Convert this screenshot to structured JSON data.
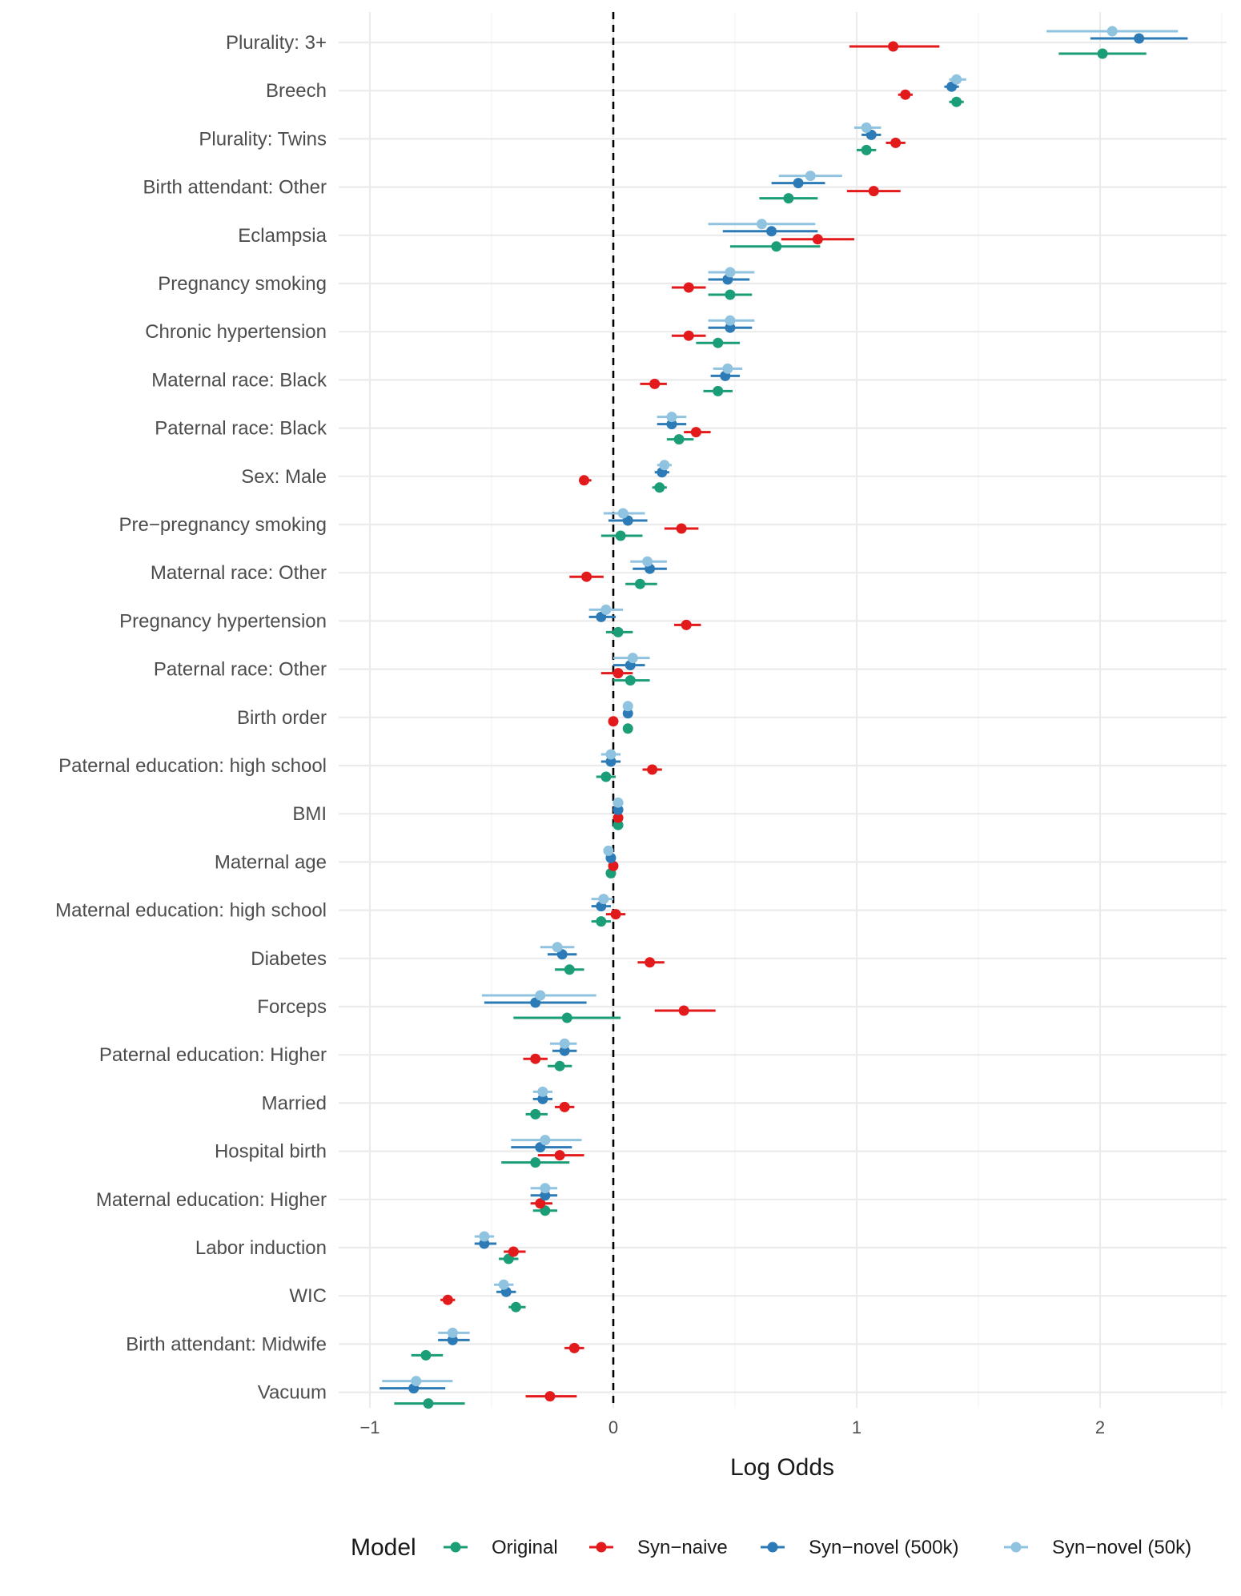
{
  "chart_data": {
    "type": "forest",
    "xlabel": "Log Odds",
    "ylabel": "",
    "xlim": [
      -1.05,
      2.5
    ],
    "x_ticks": [
      -1,
      0,
      1,
      2
    ],
    "x_tick_labels": [
      "−1",
      "0",
      "1",
      "2"
    ],
    "reference_line": 0,
    "legend_title": "Model",
    "series": [
      {
        "name": "Original",
        "color": "#1b9e77"
      },
      {
        "name": "Syn−naive",
        "color": "#e31a1c"
      },
      {
        "name": "Syn−novel (500k)",
        "color": "#2c7bb6"
      },
      {
        "name": "Syn−novel (50k)",
        "color": "#8fc3e0"
      }
    ],
    "categories": [
      "Plurality: 3+",
      "Breech",
      "Plurality: Twins",
      "Birth attendant: Other",
      "Eclampsia",
      "Pregnancy smoking",
      "Chronic hypertension",
      "Maternal race: Black",
      "Paternal race: Black",
      "Sex: Male",
      "Pre−pregnancy smoking",
      "Maternal race: Other",
      "Pregnancy hypertension",
      "Paternal race: Other",
      "Birth order",
      "Paternal education: high school",
      "BMI",
      "Maternal age",
      "Maternal education: high school",
      "Diabetes",
      "Forceps",
      "Paternal education: Higher",
      "Married",
      "Hospital birth",
      "Maternal education: Higher",
      "Labor induction",
      "WIC",
      "Birth attendant: Midwife",
      "Vacuum"
    ],
    "estimates": [
      [
        [
          2.01,
          1.83,
          2.19
        ],
        [
          1.15,
          0.97,
          1.34
        ],
        [
          2.16,
          1.96,
          2.36
        ],
        [
          2.05,
          1.78,
          2.32
        ]
      ],
      [
        [
          1.41,
          1.38,
          1.44
        ],
        [
          1.2,
          1.17,
          1.23
        ],
        [
          1.39,
          1.36,
          1.42
        ],
        [
          1.41,
          1.38,
          1.45
        ]
      ],
      [
        [
          1.04,
          1.0,
          1.08
        ],
        [
          1.16,
          1.12,
          1.2
        ],
        [
          1.06,
          1.02,
          1.1
        ],
        [
          1.04,
          0.99,
          1.1
        ]
      ],
      [
        [
          0.72,
          0.6,
          0.84
        ],
        [
          1.07,
          0.96,
          1.18
        ],
        [
          0.76,
          0.65,
          0.87
        ],
        [
          0.81,
          0.68,
          0.94
        ]
      ],
      [
        [
          0.67,
          0.48,
          0.85
        ],
        [
          0.84,
          0.69,
          0.99
        ],
        [
          0.65,
          0.45,
          0.84
        ],
        [
          0.61,
          0.39,
          0.83
        ]
      ],
      [
        [
          0.48,
          0.39,
          0.57
        ],
        [
          0.31,
          0.24,
          0.38
        ],
        [
          0.47,
          0.39,
          0.56
        ],
        [
          0.48,
          0.39,
          0.58
        ]
      ],
      [
        [
          0.43,
          0.34,
          0.52
        ],
        [
          0.31,
          0.24,
          0.38
        ],
        [
          0.48,
          0.39,
          0.57
        ],
        [
          0.48,
          0.39,
          0.58
        ]
      ],
      [
        [
          0.43,
          0.37,
          0.49
        ],
        [
          0.17,
          0.11,
          0.22
        ],
        [
          0.46,
          0.4,
          0.52
        ],
        [
          0.47,
          0.41,
          0.53
        ]
      ],
      [
        [
          0.27,
          0.22,
          0.33
        ],
        [
          0.34,
          0.29,
          0.4
        ],
        [
          0.24,
          0.18,
          0.3
        ],
        [
          0.24,
          0.18,
          0.3
        ]
      ],
      [
        [
          0.19,
          0.16,
          0.22
        ],
        [
          -0.12,
          -0.14,
          -0.09
        ],
        [
          0.2,
          0.17,
          0.23
        ],
        [
          0.21,
          0.18,
          0.24
        ]
      ],
      [
        [
          0.03,
          -0.05,
          0.12
        ],
        [
          0.28,
          0.21,
          0.35
        ],
        [
          0.06,
          -0.02,
          0.14
        ],
        [
          0.04,
          -0.04,
          0.13
        ]
      ],
      [
        [
          0.11,
          0.05,
          0.18
        ],
        [
          -0.11,
          -0.18,
          -0.04
        ],
        [
          0.15,
          0.08,
          0.22
        ],
        [
          0.14,
          0.07,
          0.22
        ]
      ],
      [
        [
          0.02,
          -0.03,
          0.08
        ],
        [
          0.3,
          0.25,
          0.36
        ],
        [
          -0.05,
          -0.1,
          0.01
        ],
        [
          -0.03,
          -0.1,
          0.04
        ]
      ],
      [
        [
          0.07,
          0.0,
          0.15
        ],
        [
          0.02,
          -0.05,
          0.08
        ],
        [
          0.07,
          0.0,
          0.13
        ],
        [
          0.08,
          0.0,
          0.15
        ]
      ],
      [
        [
          0.06,
          0.04,
          0.08
        ],
        [
          0.0,
          -0.01,
          0.01
        ],
        [
          0.06,
          0.04,
          0.08
        ],
        [
          0.06,
          0.04,
          0.08
        ]
      ],
      [
        [
          -0.03,
          -0.07,
          0.01
        ],
        [
          0.16,
          0.12,
          0.2
        ],
        [
          -0.01,
          -0.05,
          0.03
        ],
        [
          -0.01,
          -0.05,
          0.03
        ]
      ],
      [
        [
          0.02,
          0.0,
          0.03
        ],
        [
          0.02,
          0.0,
          0.03
        ],
        [
          0.02,
          0.0,
          0.03
        ],
        [
          0.02,
          0.0,
          0.03
        ]
      ],
      [
        [
          -0.01,
          -0.03,
          0.0
        ],
        [
          0.0,
          -0.01,
          0.01
        ],
        [
          -0.01,
          -0.03,
          0.0
        ],
        [
          -0.02,
          -0.03,
          0.0
        ]
      ],
      [
        [
          -0.05,
          -0.09,
          -0.01
        ],
        [
          0.01,
          -0.03,
          0.05
        ],
        [
          -0.05,
          -0.09,
          -0.01
        ],
        [
          -0.04,
          -0.09,
          0.0
        ]
      ],
      [
        [
          -0.18,
          -0.24,
          -0.12
        ],
        [
          0.15,
          0.1,
          0.21
        ],
        [
          -0.21,
          -0.27,
          -0.15
        ],
        [
          -0.23,
          -0.3,
          -0.16
        ]
      ],
      [
        [
          -0.19,
          -0.41,
          0.03
        ],
        [
          0.29,
          0.17,
          0.42
        ],
        [
          -0.32,
          -0.53,
          -0.11
        ],
        [
          -0.3,
          -0.54,
          -0.07
        ]
      ],
      [
        [
          -0.22,
          -0.27,
          -0.17
        ],
        [
          -0.32,
          -0.37,
          -0.27
        ],
        [
          -0.2,
          -0.25,
          -0.15
        ],
        [
          -0.2,
          -0.26,
          -0.15
        ]
      ],
      [
        [
          -0.32,
          -0.36,
          -0.27
        ],
        [
          -0.2,
          -0.24,
          -0.16
        ],
        [
          -0.29,
          -0.33,
          -0.25
        ],
        [
          -0.29,
          -0.33,
          -0.25
        ]
      ],
      [
        [
          -0.32,
          -0.46,
          -0.18
        ],
        [
          -0.22,
          -0.31,
          -0.12
        ],
        [
          -0.3,
          -0.42,
          -0.17
        ],
        [
          -0.28,
          -0.42,
          -0.13
        ]
      ],
      [
        [
          -0.28,
          -0.33,
          -0.23
        ],
        [
          -0.3,
          -0.34,
          -0.25
        ],
        [
          -0.28,
          -0.34,
          -0.23
        ],
        [
          -0.28,
          -0.34,
          -0.23
        ]
      ],
      [
        [
          -0.43,
          -0.47,
          -0.39
        ],
        [
          -0.41,
          -0.45,
          -0.36
        ],
        [
          -0.53,
          -0.57,
          -0.48
        ],
        [
          -0.53,
          -0.57,
          -0.49
        ]
      ],
      [
        [
          -0.4,
          -0.43,
          -0.36
        ],
        [
          -0.68,
          -0.71,
          -0.65
        ],
        [
          -0.44,
          -0.48,
          -0.4
        ],
        [
          -0.45,
          -0.49,
          -0.41
        ]
      ],
      [
        [
          -0.77,
          -0.83,
          -0.7
        ],
        [
          -0.16,
          -0.2,
          -0.12
        ],
        [
          -0.66,
          -0.72,
          -0.59
        ],
        [
          -0.66,
          -0.72,
          -0.59
        ]
      ],
      [
        [
          -0.76,
          -0.9,
          -0.61
        ],
        [
          -0.26,
          -0.36,
          -0.15
        ],
        [
          -0.82,
          -0.96,
          -0.69
        ],
        [
          -0.81,
          -0.95,
          -0.66
        ]
      ]
    ]
  }
}
